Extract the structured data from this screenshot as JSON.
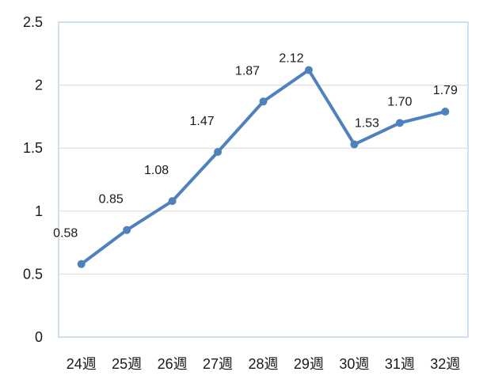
{
  "chart_data": {
    "type": "line",
    "categories": [
      "24週",
      "25週",
      "26週",
      "27週",
      "28週",
      "29週",
      "30週",
      "31週",
      "32週"
    ],
    "series": [
      {
        "values": [
          0.58,
          0.85,
          1.08,
          1.47,
          1.87,
          2.12,
          1.53,
          1.7,
          1.79
        ],
        "data_labels": [
          "0.58",
          "0.85",
          "1.08",
          "1.47",
          "1.87",
          "2.12",
          "1.53",
          "1.70",
          "1.79"
        ],
        "color": "#4f81bd"
      }
    ],
    "y_ticks": [
      "0",
      "0.5",
      "1",
      "1.5",
      "2",
      "2.5"
    ],
    "ylim": [
      0,
      2.5
    ],
    "grid": true,
    "legend": "none",
    "title": "",
    "xlabel": "",
    "ylabel": ""
  },
  "colors": {
    "line": "#4f81bd",
    "marker": "#4f81bd",
    "gridline": "#d9d9d9",
    "plot_border": "#9dc3e6"
  }
}
